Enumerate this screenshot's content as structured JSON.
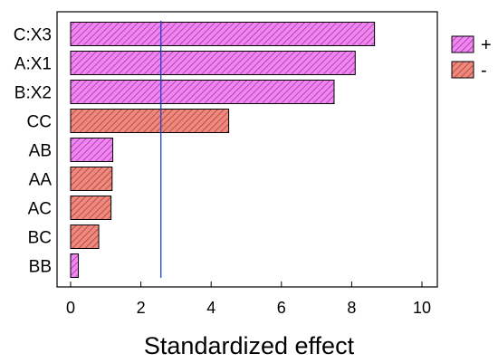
{
  "chart_data": {
    "type": "bar",
    "orientation": "horizontal",
    "xlabel": "Standardized effect",
    "xlim": [
      0,
      10.4
    ],
    "xticks": [
      0,
      2,
      4,
      6,
      8,
      10
    ],
    "reference_line": 2.57,
    "reference_line_color": "#1f3fd6",
    "categories": [
      "C:X3",
      "A:X1",
      "B:X2",
      "CC",
      "AB",
      "AA",
      "AC",
      "BC",
      "BB"
    ],
    "values": [
      8.65,
      8.1,
      7.5,
      4.5,
      1.2,
      1.18,
      1.15,
      0.8,
      0.22
    ],
    "signs": [
      "+",
      "+",
      "+",
      "-",
      "+",
      "-",
      "-",
      "-",
      "+"
    ],
    "legend": [
      {
        "key": "+",
        "label": "+",
        "fill": "#ee88ee",
        "hatch": "#b02cb0"
      },
      {
        "key": "-",
        "label": "-",
        "fill": "#ec8a80",
        "hatch": "#b83a2e"
      }
    ],
    "grid": false,
    "legend_position": "right"
  }
}
